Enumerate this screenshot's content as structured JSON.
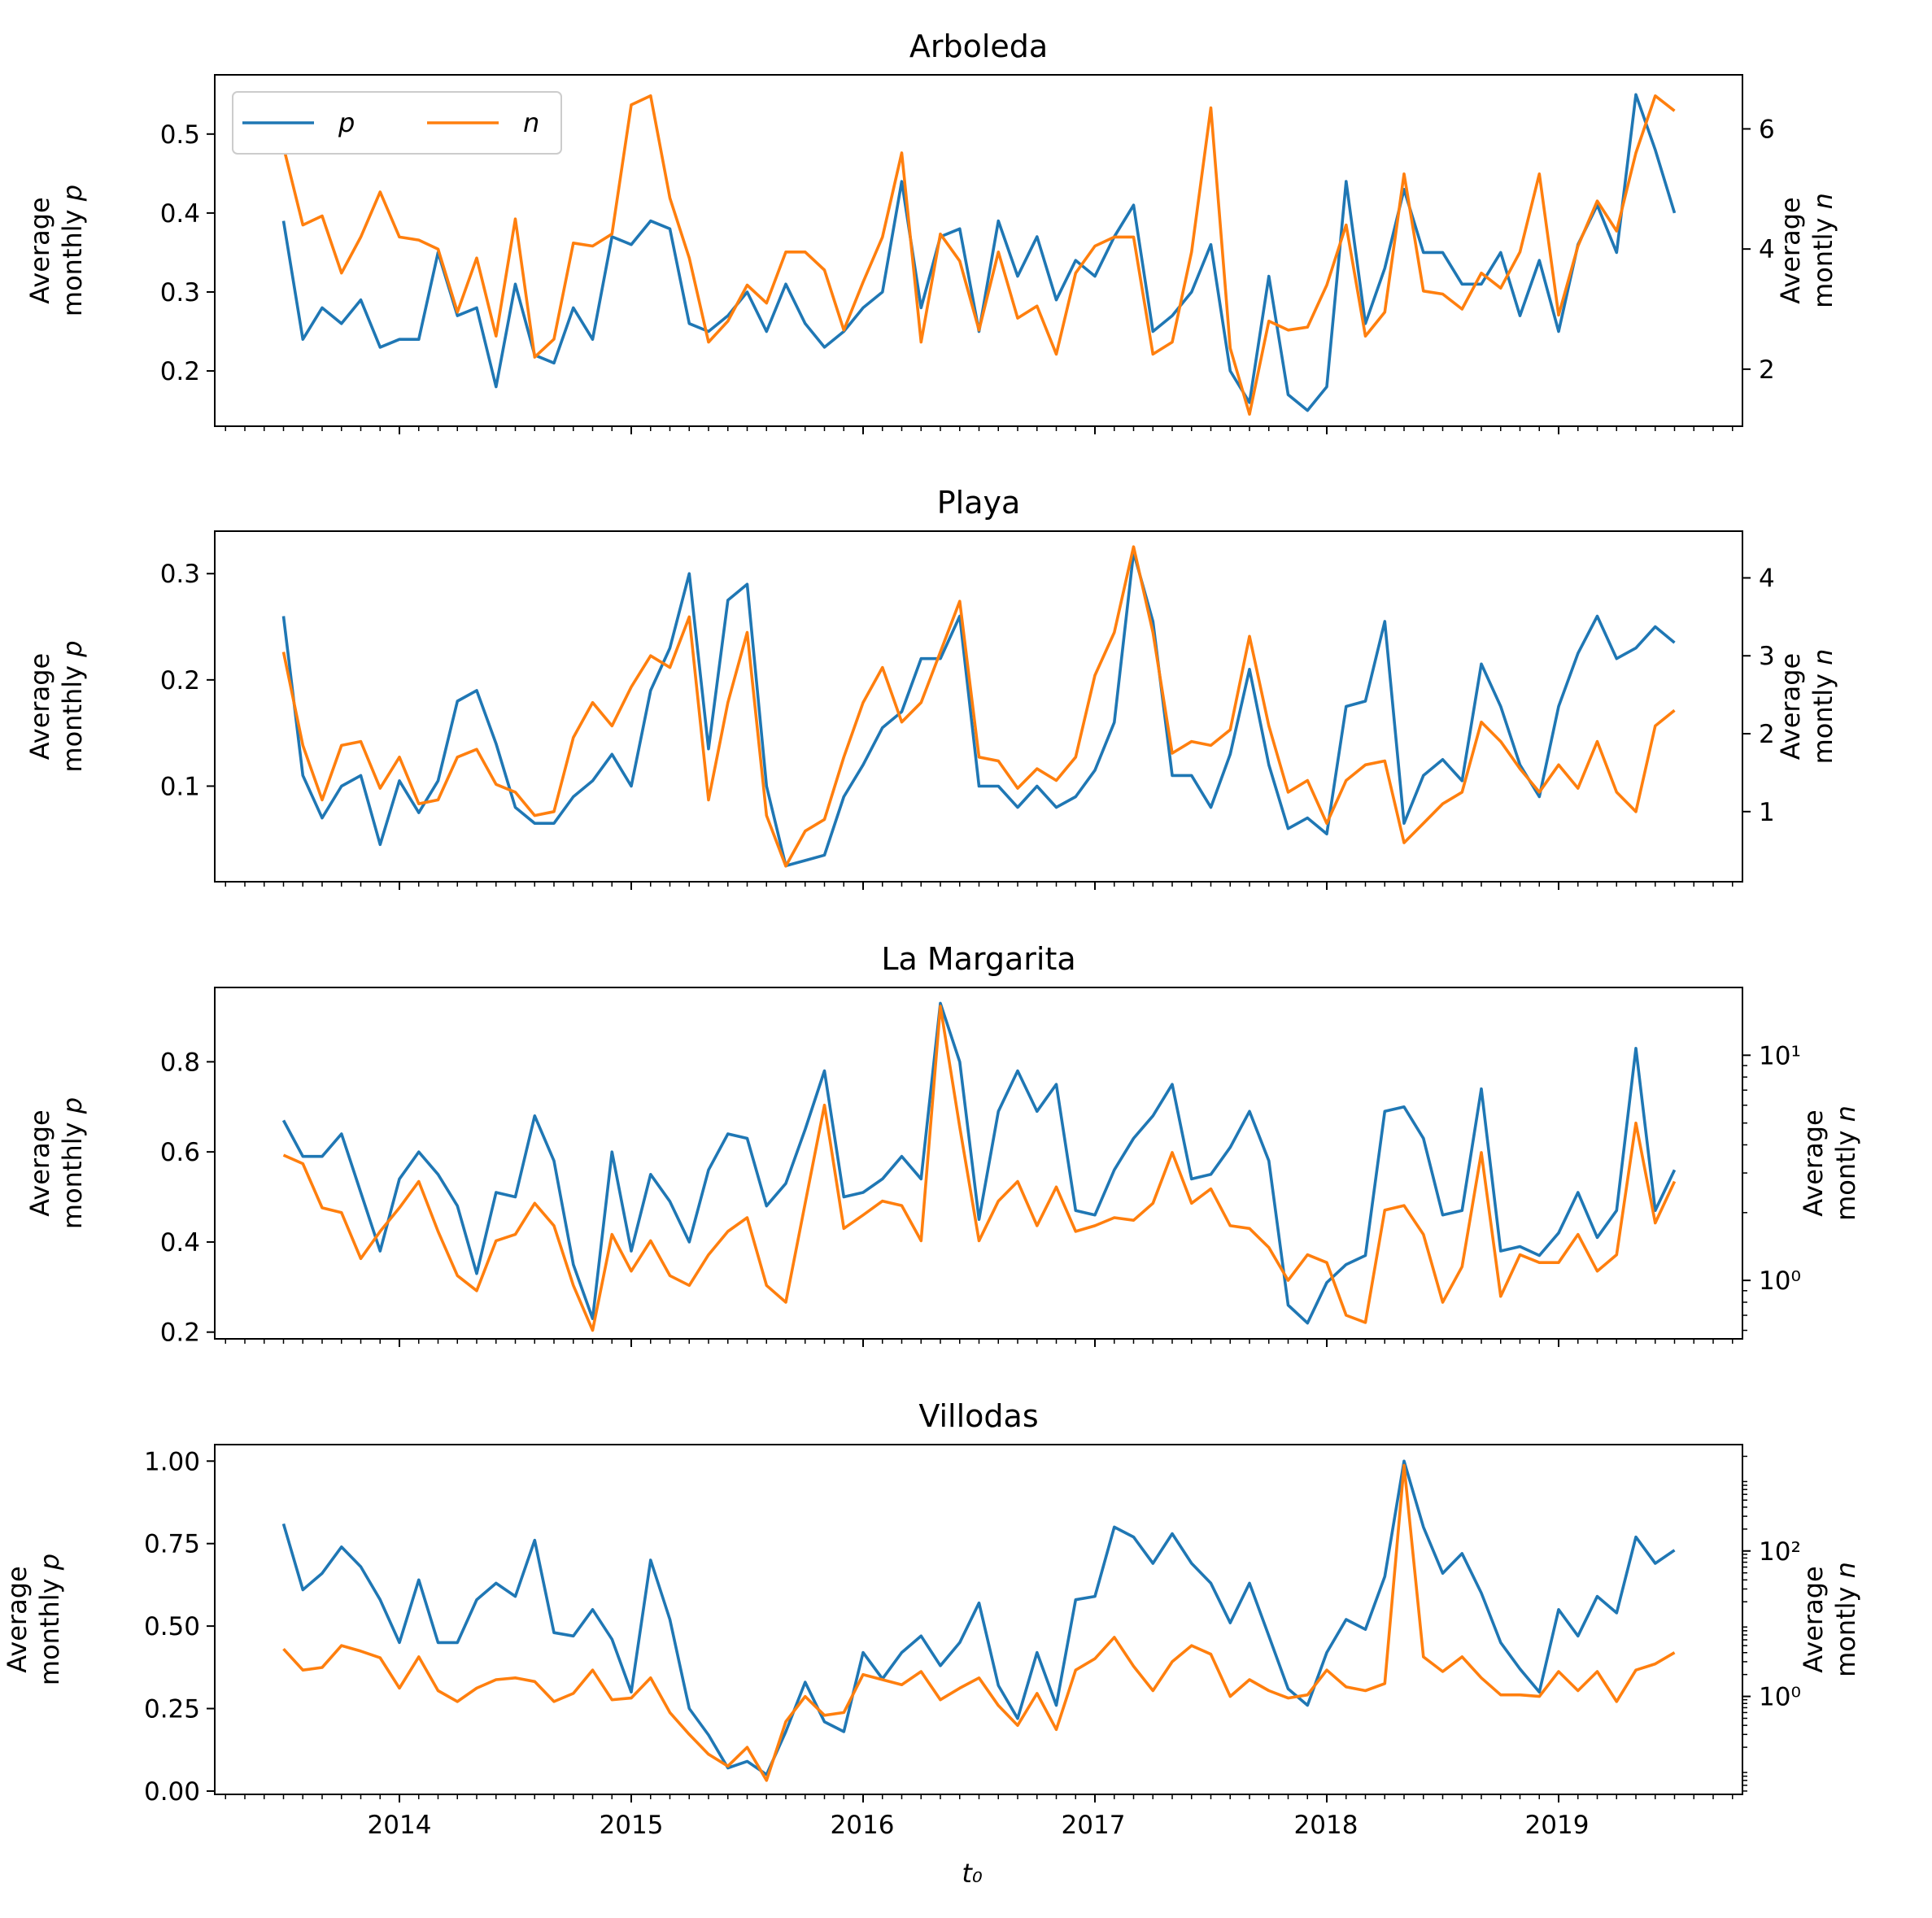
{
  "chart_data": [
    {
      "type": "line",
      "title": "Arboleda",
      "x": [
        "2013-07",
        "2013-08",
        "2013-09",
        "2013-10",
        "2013-11",
        "2013-12",
        "2014-01",
        "2014-02",
        "2014-03",
        "2014-04",
        "2014-05",
        "2014-06",
        "2014-07",
        "2014-08",
        "2014-09",
        "2014-10",
        "2014-11",
        "2014-12",
        "2015-01",
        "2015-02",
        "2015-03",
        "2015-04",
        "2015-05",
        "2015-06",
        "2015-07",
        "2015-08",
        "2015-09",
        "2015-10",
        "2015-11",
        "2015-12",
        "2016-01",
        "2016-02",
        "2016-03",
        "2016-04",
        "2016-05",
        "2016-06",
        "2016-07",
        "2016-08",
        "2016-09",
        "2016-10",
        "2016-11",
        "2016-12",
        "2017-01",
        "2017-02",
        "2017-03",
        "2017-04",
        "2017-05",
        "2017-06",
        "2017-07",
        "2017-08",
        "2017-09",
        "2017-10",
        "2017-11",
        "2017-12",
        "2018-01",
        "2018-02",
        "2018-03",
        "2018-04",
        "2018-05",
        "2018-06",
        "2018-07",
        "2018-08",
        "2018-09",
        "2018-10",
        "2018-11",
        "2018-12",
        "2019-01",
        "2019-02",
        "2019-03",
        "2019-04",
        "2019-05",
        "2019-06",
        "2019-07"
      ],
      "series": [
        {
          "name": "p",
          "axis": "left",
          "color": "#1f77b4",
          "values": [
            0.39,
            0.24,
            0.28,
            0.26,
            0.29,
            0.23,
            0.24,
            0.24,
            0.35,
            0.27,
            0.28,
            0.18,
            0.31,
            0.22,
            0.21,
            0.28,
            0.24,
            0.37,
            0.36,
            0.39,
            0.38,
            0.26,
            0.25,
            0.27,
            0.3,
            0.25,
            0.31,
            0.26,
            0.23,
            0.25,
            0.28,
            0.3,
            0.44,
            0.28,
            0.37,
            0.38,
            0.25,
            0.39,
            0.32,
            0.37,
            0.29,
            0.34,
            0.32,
            0.37,
            0.41,
            0.25,
            0.27,
            0.3,
            0.36,
            0.2,
            0.16,
            0.32,
            0.17,
            0.15,
            0.18,
            0.44,
            0.26,
            0.33,
            0.43,
            0.35,
            0.35,
            0.31,
            0.31,
            0.35,
            0.27,
            0.34,
            0.25,
            0.36,
            0.41,
            0.35,
            0.55,
            0.48,
            0.4
          ]
        },
        {
          "name": "n",
          "axis": "right",
          "color": "#ff7f0e",
          "values": [
            5.7,
            4.4,
            4.55,
            3.6,
            4.2,
            4.95,
            4.2,
            4.15,
            4.0,
            2.95,
            3.85,
            2.55,
            4.5,
            2.2,
            2.5,
            4.1,
            4.05,
            4.25,
            6.4,
            6.55,
            4.85,
            3.85,
            2.45,
            2.8,
            3.4,
            3.1,
            3.95,
            3.95,
            3.65,
            2.65,
            3.45,
            4.2,
            5.6,
            2.45,
            4.25,
            3.8,
            2.65,
            3.95,
            2.85,
            3.05,
            2.25,
            3.6,
            4.05,
            4.2,
            4.2,
            2.25,
            2.45,
            3.95,
            6.35,
            2.35,
            1.25,
            2.8,
            2.65,
            2.7,
            3.4,
            4.4,
            2.55,
            2.95,
            5.25,
            3.3,
            3.25,
            3.0,
            3.6,
            3.35,
            3.95,
            5.25,
            2.9,
            4.05,
            4.8,
            4.3,
            5.6,
            6.55,
            6.3
          ]
        }
      ],
      "ylabel_left": "Average monthly p",
      "ylabel_right": "Average montly n",
      "left_ticks": [
        "0.2",
        "0.3",
        "0.4",
        "0.5"
      ],
      "right_ticks": [
        "2",
        "4",
        "6"
      ],
      "ylim_left": [
        0.13,
        0.575
      ],
      "ylim_right": [
        1.05,
        6.9
      ],
      "right_scale": "linear",
      "legend": {
        "placement": "upper-left",
        "entries": [
          "p",
          "n"
        ]
      }
    },
    {
      "type": "line",
      "title": "Playa",
      "x_ref": 0,
      "series": [
        {
          "name": "p",
          "axis": "left",
          "color": "#1f77b4",
          "values": [
            0.26,
            0.11,
            0.07,
            0.1,
            0.11,
            0.045,
            0.105,
            0.075,
            0.105,
            0.18,
            0.19,
            0.14,
            0.08,
            0.065,
            0.065,
            0.09,
            0.105,
            0.13,
            0.1,
            0.19,
            0.23,
            0.3,
            0.135,
            0.275,
            0.29,
            0.1,
            0.025,
            0.03,
            0.035,
            0.09,
            0.12,
            0.155,
            0.17,
            0.22,
            0.22,
            0.26,
            0.1,
            0.1,
            0.08,
            0.1,
            0.08,
            0.09,
            0.115,
            0.16,
            0.32,
            0.255,
            0.11,
            0.11,
            0.08,
            0.13,
            0.21,
            0.12,
            0.06,
            0.07,
            0.055,
            0.175,
            0.18,
            0.255,
            0.065,
            0.11,
            0.125,
            0.105,
            0.215,
            0.175,
            0.12,
            0.09,
            0.175,
            0.225,
            0.26,
            0.22,
            0.23,
            0.25,
            0.235
          ]
        },
        {
          "name": "n",
          "axis": "right",
          "color": "#ff7f0e",
          "values": [
            3.05,
            1.85,
            1.15,
            1.85,
            1.9,
            1.3,
            1.7,
            1.1,
            1.15,
            1.7,
            1.8,
            1.35,
            1.25,
            0.95,
            1.0,
            1.95,
            2.4,
            2.1,
            2.6,
            3.0,
            2.85,
            3.5,
            1.15,
            2.4,
            3.3,
            0.95,
            0.3,
            0.75,
            0.9,
            1.7,
            2.4,
            2.85,
            2.15,
            2.4,
            3.05,
            3.7,
            1.7,
            1.65,
            1.3,
            1.55,
            1.4,
            1.7,
            2.75,
            3.3,
            4.4,
            3.3,
            1.75,
            1.9,
            1.85,
            2.05,
            3.25,
            2.1,
            1.25,
            1.4,
            0.85,
            1.4,
            1.6,
            1.65,
            0.6,
            0.85,
            1.1,
            1.25,
            2.15,
            1.9,
            1.55,
            1.25,
            1.6,
            1.3,
            1.9,
            1.25,
            1.0,
            2.1,
            2.3
          ]
        }
      ],
      "ylabel_left": "Average monthly p",
      "ylabel_right": "Average montly n",
      "left_ticks": [
        "0.1",
        "0.2",
        "0.3"
      ],
      "right_ticks": [
        "1",
        "2",
        "3",
        "4"
      ],
      "ylim_left": [
        0.01,
        0.34
      ],
      "ylim_right": [
        0.1,
        4.6
      ],
      "right_scale": "linear"
    },
    {
      "type": "line",
      "title": "La Margarita",
      "x_ref": 0,
      "series": [
        {
          "name": "p",
          "axis": "left",
          "color": "#1f77b4",
          "values": [
            0.67,
            0.59,
            0.59,
            0.64,
            0.51,
            0.38,
            0.54,
            0.6,
            0.55,
            0.48,
            0.33,
            0.51,
            0.5,
            0.68,
            0.58,
            0.35,
            0.23,
            0.6,
            0.38,
            0.55,
            0.49,
            0.4,
            0.56,
            0.64,
            0.63,
            0.48,
            0.53,
            0.65,
            0.78,
            0.5,
            0.51,
            0.54,
            0.59,
            0.54,
            0.93,
            0.8,
            0.45,
            0.69,
            0.78,
            0.69,
            0.75,
            0.47,
            0.46,
            0.56,
            0.63,
            0.68,
            0.75,
            0.54,
            0.55,
            0.61,
            0.69,
            0.58,
            0.26,
            0.22,
            0.31,
            0.35,
            0.37,
            0.69,
            0.7,
            0.63,
            0.46,
            0.47,
            0.74,
            0.38,
            0.39,
            0.37,
            0.42,
            0.51,
            0.41,
            0.47,
            0.83,
            0.47,
            0.56
          ]
        },
        {
          "name": "n",
          "axis": "right",
          "color": "#ff7f0e",
          "values": [
            3.6,
            3.3,
            2.1,
            2.0,
            1.25,
            1.65,
            2.1,
            2.75,
            1.65,
            1.05,
            0.9,
            1.5,
            1.6,
            2.2,
            1.75,
            0.95,
            0.6,
            1.6,
            1.1,
            1.5,
            1.05,
            0.95,
            1.3,
            1.65,
            1.9,
            0.95,
            0.8,
            2.2,
            6.0,
            1.7,
            1.95,
            2.25,
            2.15,
            1.5,
            16.5,
            4.8,
            1.5,
            2.25,
            2.75,
            1.75,
            2.6,
            1.65,
            1.75,
            1.9,
            1.85,
            2.2,
            3.7,
            2.2,
            2.55,
            1.75,
            1.7,
            1.4,
            1.0,
            1.3,
            1.2,
            0.7,
            0.65,
            2.05,
            2.15,
            1.6,
            0.8,
            1.15,
            3.7,
            0.85,
            1.3,
            1.2,
            1.2,
            1.6,
            1.1,
            1.3,
            5.0,
            1.8,
            2.75
          ]
        }
      ],
      "ylabel_left": "Average monthly p",
      "ylabel_right": "Average montly n",
      "left_ticks": [
        "0.2",
        "0.4",
        "0.6",
        "0.8"
      ],
      "right_ticks": [
        "10⁰",
        "10¹"
      ],
      "ylim_left": [
        0.185,
        0.965
      ],
      "ylim_right": [
        0.55,
        20.0
      ],
      "right_scale": "log"
    },
    {
      "type": "line",
      "title": "Villodas",
      "x_ref": 0,
      "xlabel": "t₀",
      "x_tick_labels": [
        "2014",
        "2015",
        "2016",
        "2017",
        "2018",
        "2019"
      ],
      "series": [
        {
          "name": "p",
          "axis": "left",
          "color": "#1f77b4",
          "values": [
            0.81,
            0.61,
            0.66,
            0.74,
            0.68,
            0.58,
            0.45,
            0.64,
            0.45,
            0.45,
            0.58,
            0.63,
            0.59,
            0.76,
            0.48,
            0.47,
            0.55,
            0.46,
            0.3,
            0.7,
            0.52,
            0.25,
            0.17,
            0.07,
            0.09,
            0.05,
            0.18,
            0.33,
            0.21,
            0.18,
            0.42,
            0.34,
            0.42,
            0.47,
            0.38,
            0.45,
            0.57,
            0.32,
            0.22,
            0.42,
            0.26,
            0.58,
            0.59,
            0.8,
            0.77,
            0.69,
            0.78,
            0.69,
            0.63,
            0.51,
            0.63,
            0.47,
            0.31,
            0.26,
            0.42,
            0.52,
            0.49,
            0.65,
            1.0,
            0.8,
            0.66,
            0.72,
            0.6,
            0.45,
            0.37,
            0.3,
            0.55,
            0.47,
            0.59,
            0.54,
            0.77,
            0.69,
            0.73
          ]
        },
        {
          "name": "n",
          "axis": "right",
          "color": "#ff7f0e",
          "values": [
            4.5,
            2.3,
            2.5,
            5.0,
            4.2,
            3.4,
            1.3,
            3.5,
            1.2,
            0.85,
            1.3,
            1.7,
            1.8,
            1.6,
            0.85,
            1.1,
            2.3,
            0.9,
            0.95,
            1.8,
            0.6,
            0.3,
            0.16,
            0.11,
            0.2,
            0.07,
            0.45,
            1.0,
            0.55,
            0.6,
            2.0,
            1.7,
            1.45,
            2.2,
            0.9,
            1.3,
            1.8,
            0.75,
            0.4,
            1.1,
            0.35,
            2.3,
            3.3,
            6.5,
            2.6,
            1.2,
            3.0,
            5.0,
            3.8,
            1.0,
            1.7,
            1.2,
            0.95,
            1.05,
            2.3,
            1.35,
            1.2,
            1.5,
            1500,
            3.5,
            2.2,
            3.5,
            1.8,
            1.05,
            1.05,
            1.0,
            2.2,
            1.2,
            2.2,
            0.85,
            2.3,
            2.8,
            4.0
          ]
        }
      ],
      "ylabel_left": "Average monthly p",
      "ylabel_right": "Average montly n",
      "left_ticks": [
        "0.00",
        "0.25",
        "0.50",
        "0.75",
        "1.00"
      ],
      "right_ticks": [
        "10⁰",
        "10²"
      ],
      "ylim_left": [
        -0.01,
        1.05
      ],
      "ylim_right": [
        0.045,
        2900
      ],
      "right_scale": "log"
    }
  ]
}
